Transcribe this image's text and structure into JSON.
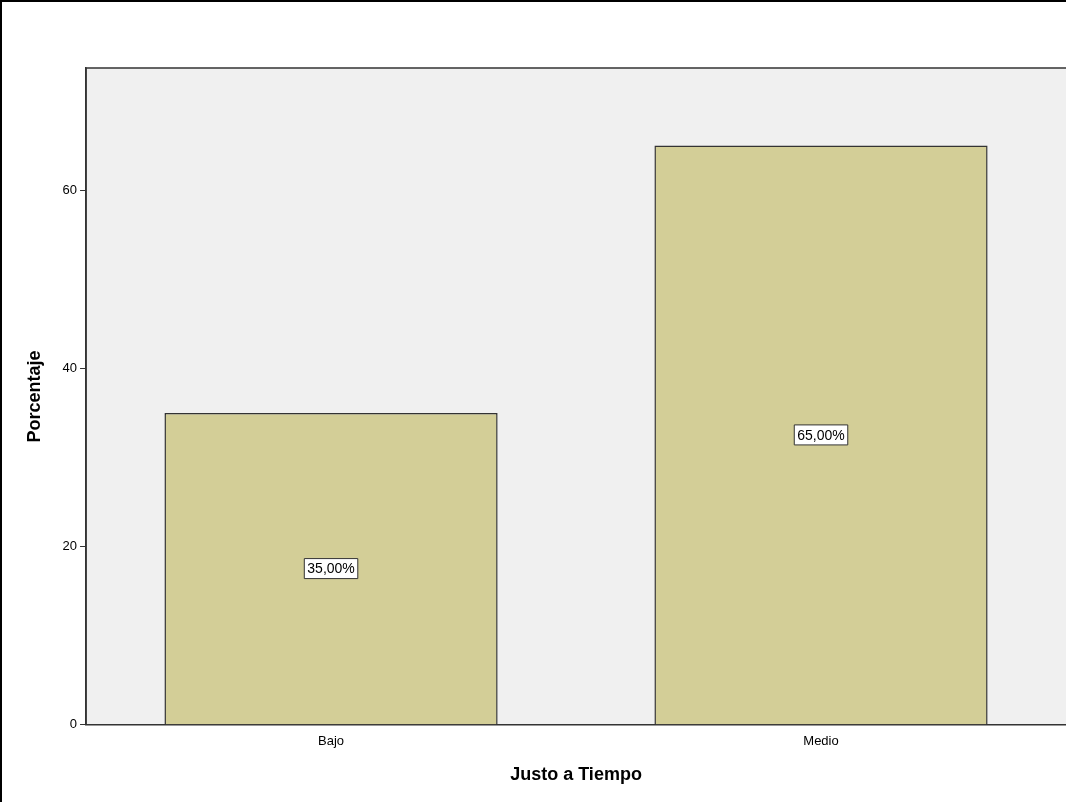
{
  "chart_data": {
    "type": "bar",
    "xlabel": "Justo a Tiempo",
    "ylabel": "Porcentaje",
    "categories": [
      "Bajo",
      "Medio"
    ],
    "values": [
      35,
      65
    ],
    "color": "#d3ce97",
    "value_labels": [
      "35,00%",
      "65,00%"
    ],
    "ylim": [
      0,
      73.7
    ],
    "yticks": [
      0,
      20,
      40,
      60
    ],
    "grid": false,
    "legend": false
  }
}
